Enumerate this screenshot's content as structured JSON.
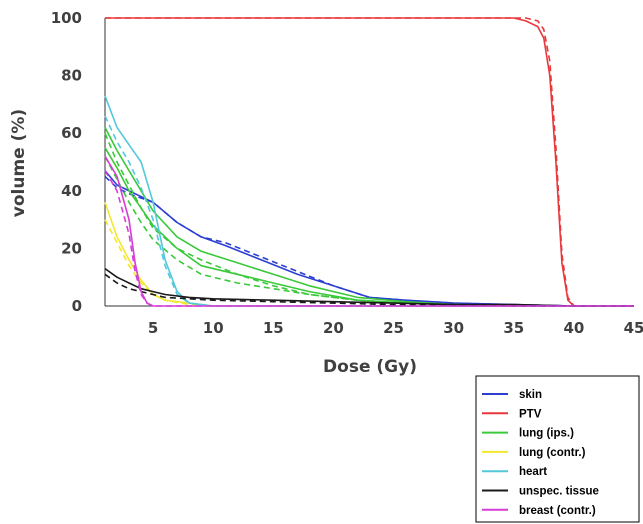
{
  "chart_data": {
    "type": "line",
    "title": "",
    "xlabel": "Dose (Gy)",
    "ylabel": "volume (%)",
    "xlim": [
      1,
      45
    ],
    "ylim": [
      0,
      100
    ],
    "x_ticks": [
      5,
      10,
      15,
      20,
      25,
      30,
      35,
      40,
      45
    ],
    "y_ticks": [
      0,
      20,
      40,
      60,
      80,
      100
    ],
    "grid": false,
    "legend_position": "bottom-right",
    "colors": {
      "skin": "#2c3fd0",
      "PTV": "#e8383c",
      "lung (ips.)": "#3ac93a",
      "lung  (contr.)": "#f2e830",
      "heart": "#53c8dc",
      "unspec. tissue": "#1a1a1a",
      "breast (contr.)": "#d63cd8"
    },
    "series": [
      {
        "name": "skin",
        "style": "solid",
        "x": [
          1,
          2,
          3,
          5,
          7,
          9,
          11,
          14,
          17,
          20,
          23,
          26,
          30,
          35,
          40,
          45
        ],
        "y": [
          47,
          42,
          40,
          36,
          29,
          24,
          21,
          16,
          11,
          7,
          3,
          2,
          1,
          0.5,
          0,
          0
        ]
      },
      {
        "name": "skin",
        "style": "dashed",
        "x": [
          1,
          2,
          3,
          5,
          7,
          9,
          11,
          14,
          17,
          20,
          23,
          26,
          30,
          35,
          40,
          45
        ],
        "y": [
          45,
          41,
          39,
          36,
          29,
          24,
          22,
          17,
          12,
          7,
          3,
          2,
          1,
          0.5,
          0,
          0
        ]
      },
      {
        "name": "PTV",
        "style": "solid",
        "x": [
          1,
          10,
          20,
          30,
          35,
          36,
          37,
          37.5,
          38,
          38.5,
          39,
          39.5,
          40,
          45
        ],
        "y": [
          100,
          100,
          100,
          100,
          100,
          99,
          97,
          93,
          80,
          50,
          15,
          2,
          0,
          0
        ]
      },
      {
        "name": "PTV",
        "style": "dashed",
        "x": [
          1,
          10,
          20,
          30,
          35,
          36,
          37,
          37.5,
          38,
          38.5,
          39,
          39.5,
          40,
          45
        ],
        "y": [
          100,
          100,
          100,
          100,
          100,
          100,
          99,
          96,
          85,
          55,
          18,
          3,
          0,
          0
        ]
      },
      {
        "name": "lung (ips.)",
        "style": "solid",
        "x": [
          1,
          2,
          3,
          4,
          5,
          7,
          9,
          12,
          15,
          18,
          22,
          26,
          30,
          35,
          40
        ],
        "y": [
          62,
          54,
          47,
          40,
          33,
          24,
          19,
          15,
          11,
          7,
          3,
          1.5,
          0.5,
          0,
          0
        ]
      },
      {
        "name": "lung (ips.)",
        "style": "solid",
        "x": [
          1,
          2,
          3,
          4,
          5,
          7,
          9,
          12,
          15,
          18,
          22,
          26,
          30,
          35,
          40
        ],
        "y": [
          55,
          48,
          40,
          34,
          28,
          20,
          14,
          11,
          8,
          5,
          2,
          1,
          0.5,
          0,
          0
        ]
      },
      {
        "name": "lung (ips.)",
        "style": "dashed",
        "x": [
          1,
          2,
          3,
          4,
          5,
          7,
          9,
          12,
          15,
          18,
          22,
          26,
          30,
          35,
          40
        ],
        "y": [
          60,
          50,
          42,
          34,
          27,
          20,
          16,
          11,
          7,
          4,
          2,
          1,
          0.5,
          0,
          0
        ]
      },
      {
        "name": "lung (ips.)",
        "style": "dashed",
        "x": [
          1,
          2,
          3,
          4,
          5,
          7,
          9,
          12,
          15,
          18,
          22,
          26,
          30,
          35,
          40
        ],
        "y": [
          52,
          44,
          36,
          29,
          23,
          16,
          11,
          8,
          6,
          4,
          2,
          1,
          0.5,
          0,
          0
        ]
      },
      {
        "name": "lung  (contr.)",
        "style": "solid",
        "x": [
          1,
          2,
          3,
          4,
          5,
          6,
          8,
          10,
          45
        ],
        "y": [
          36,
          24,
          16,
          9,
          4,
          2,
          1,
          0,
          0
        ]
      },
      {
        "name": "lung  (contr.)",
        "style": "dashed",
        "x": [
          1,
          2,
          3,
          4,
          5,
          6,
          8,
          10,
          45
        ],
        "y": [
          30,
          22,
          14,
          8,
          4,
          2,
          0.5,
          0,
          0
        ]
      },
      {
        "name": "heart",
        "style": "solid",
        "x": [
          1,
          2,
          3,
          4,
          5,
          6,
          7,
          8,
          10,
          45
        ],
        "y": [
          73,
          62,
          56,
          50,
          36,
          16,
          5,
          1,
          0,
          0
        ]
      },
      {
        "name": "heart",
        "style": "dashed",
        "x": [
          1,
          2,
          3,
          4,
          5,
          6,
          7,
          8,
          10,
          45
        ],
        "y": [
          66,
          57,
          50,
          41,
          30,
          14,
          4,
          1,
          0,
          0
        ]
      },
      {
        "name": "unspec. tissue",
        "style": "solid",
        "x": [
          1,
          2,
          3,
          4,
          5,
          6,
          8,
          10,
          15,
          20,
          25,
          30,
          35,
          40,
          45
        ],
        "y": [
          13,
          10,
          8,
          6,
          5,
          4,
          3,
          2.5,
          2,
          1.5,
          1,
          0.5,
          0.5,
          0,
          0
        ]
      },
      {
        "name": "unspec. tissue",
        "style": "dashed",
        "x": [
          1,
          2,
          3,
          4,
          5,
          6,
          8,
          10,
          15,
          20,
          25,
          30,
          35,
          40,
          45
        ],
        "y": [
          11,
          8,
          6,
          5,
          4,
          3,
          2.5,
          2,
          1.5,
          1,
          0.5,
          0.5,
          0,
          0,
          0
        ]
      },
      {
        "name": "breast (contr.)",
        "style": "solid",
        "x": [
          1,
          2,
          3,
          3.5,
          4,
          4.5,
          5,
          6,
          45
        ],
        "y": [
          52,
          45,
          30,
          15,
          5,
          1,
          0,
          0,
          0
        ]
      },
      {
        "name": "breast (contr.)",
        "style": "dashed",
        "x": [
          1,
          2,
          3,
          3.5,
          4,
          4.5,
          5,
          6,
          45
        ],
        "y": [
          47,
          40,
          25,
          12,
          4,
          1,
          0,
          0,
          0
        ]
      }
    ],
    "legend": [
      "skin",
      "PTV",
      "lung (ips.)",
      "lung  (contr.)",
      "heart",
      "unspec. tissue",
      "breast (contr.)"
    ]
  }
}
